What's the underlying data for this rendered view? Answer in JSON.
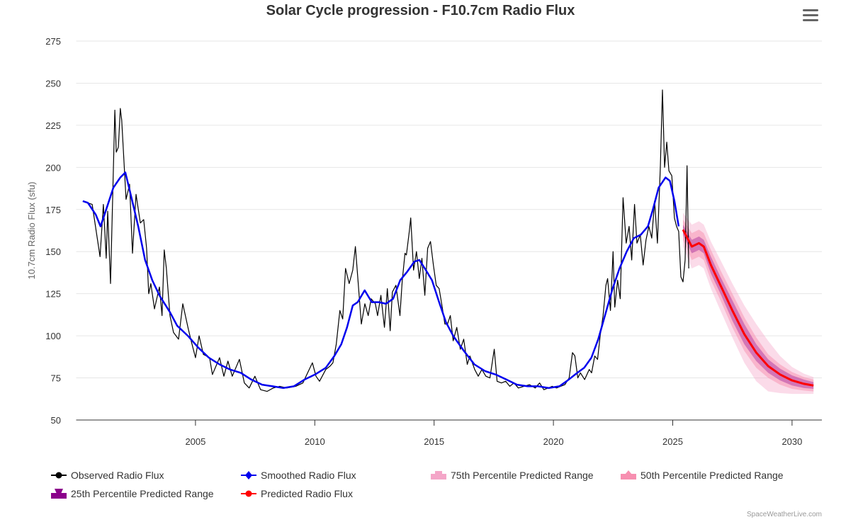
{
  "chart_data": {
    "type": "line",
    "title": "Solar Cycle progression - F10.7cm Radio Flux",
    "xlabel": "",
    "ylabel": "10.7cm Radio Flux (sfu)",
    "xlim": [
      2000,
      2031.25
    ],
    "ylim": [
      50,
      275
    ],
    "x_ticks": [
      2005,
      2010,
      2015,
      2020,
      2025,
      2030
    ],
    "y_ticks": [
      50,
      75,
      100,
      125,
      150,
      175,
      200,
      225,
      250,
      275
    ],
    "grid": true,
    "legend_placement": "bottom",
    "series": [
      {
        "name": "Observed Radio Flux",
        "color": "#000000",
        "points": [
          [
            2000.28,
            180
          ],
          [
            2000.67,
            178
          ],
          [
            2001.0,
            147
          ],
          [
            2001.14,
            178
          ],
          [
            2001.26,
            146
          ],
          [
            2001.32,
            174
          ],
          [
            2001.44,
            131
          ],
          [
            2001.62,
            234
          ],
          [
            2001.68,
            209
          ],
          [
            2001.77,
            212
          ],
          [
            2001.85,
            235
          ],
          [
            2001.91,
            228
          ],
          [
            2002.09,
            181
          ],
          [
            2002.24,
            190
          ],
          [
            2002.36,
            149
          ],
          [
            2002.51,
            184
          ],
          [
            2002.69,
            167
          ],
          [
            2002.83,
            169
          ],
          [
            2002.95,
            152
          ],
          [
            2003.04,
            125
          ],
          [
            2003.13,
            131
          ],
          [
            2003.28,
            116
          ],
          [
            2003.49,
            129
          ],
          [
            2003.6,
            112
          ],
          [
            2003.69,
            151
          ],
          [
            2003.78,
            140
          ],
          [
            2003.93,
            112
          ],
          [
            2004.08,
            102
          ],
          [
            2004.29,
            98
          ],
          [
            2004.47,
            119
          ],
          [
            2004.7,
            104
          ],
          [
            2004.82,
            97
          ],
          [
            2005.0,
            87
          ],
          [
            2005.15,
            100
          ],
          [
            2005.33,
            89
          ],
          [
            2005.59,
            87
          ],
          [
            2005.71,
            77
          ],
          [
            2006.01,
            87
          ],
          [
            2006.19,
            76
          ],
          [
            2006.36,
            85
          ],
          [
            2006.54,
            76
          ],
          [
            2006.84,
            86
          ],
          [
            2007.05,
            72
          ],
          [
            2007.25,
            69
          ],
          [
            2007.49,
            76
          ],
          [
            2007.73,
            68
          ],
          [
            2008.0,
            67
          ],
          [
            2008.26,
            69
          ],
          [
            2008.53,
            70
          ],
          [
            2008.83,
            69
          ],
          [
            2009.2,
            70
          ],
          [
            2009.5,
            72
          ],
          [
            2009.7,
            78
          ],
          [
            2009.9,
            84
          ],
          [
            2010.05,
            76
          ],
          [
            2010.2,
            73
          ],
          [
            2010.46,
            80
          ],
          [
            2010.64,
            82
          ],
          [
            2010.76,
            84
          ],
          [
            2010.9,
            95
          ],
          [
            2011.05,
            115
          ],
          [
            2011.17,
            110
          ],
          [
            2011.29,
            140
          ],
          [
            2011.44,
            131
          ],
          [
            2011.59,
            139
          ],
          [
            2011.7,
            153
          ],
          [
            2011.8,
            135
          ],
          [
            2011.95,
            107
          ],
          [
            2012.1,
            119
          ],
          [
            2012.24,
            112
          ],
          [
            2012.36,
            122
          ],
          [
            2012.54,
            119
          ],
          [
            2012.63,
            112
          ],
          [
            2012.77,
            124
          ],
          [
            2012.92,
            105
          ],
          [
            2013.04,
            128
          ],
          [
            2013.16,
            103
          ],
          [
            2013.25,
            126
          ],
          [
            2013.4,
            130
          ],
          [
            2013.57,
            112
          ],
          [
            2013.66,
            132
          ],
          [
            2013.78,
            149
          ],
          [
            2013.84,
            148
          ],
          [
            2013.96,
            162
          ],
          [
            2014.02,
            170
          ],
          [
            2014.14,
            139
          ],
          [
            2014.26,
            150
          ],
          [
            2014.38,
            134
          ],
          [
            2014.49,
            146
          ],
          [
            2014.61,
            124
          ],
          [
            2014.73,
            152
          ],
          [
            2014.85,
            156
          ],
          [
            2014.97,
            142
          ],
          [
            2015.09,
            130
          ],
          [
            2015.21,
            128
          ],
          [
            2015.33,
            118
          ],
          [
            2015.45,
            107
          ],
          [
            2015.56,
            107
          ],
          [
            2015.68,
            112
          ],
          [
            2015.8,
            97
          ],
          [
            2015.95,
            105
          ],
          [
            2016.1,
            92
          ],
          [
            2016.24,
            98
          ],
          [
            2016.39,
            83
          ],
          [
            2016.5,
            88
          ],
          [
            2016.7,
            80
          ],
          [
            2016.85,
            76
          ],
          [
            2017.0,
            80
          ],
          [
            2017.17,
            76
          ],
          [
            2017.34,
            75
          ],
          [
            2017.52,
            92
          ],
          [
            2017.64,
            73
          ],
          [
            2017.82,
            72
          ],
          [
            2018.0,
            73
          ],
          [
            2018.17,
            70
          ],
          [
            2018.35,
            72
          ],
          [
            2018.53,
            69
          ],
          [
            2018.77,
            70
          ],
          [
            2019.0,
            71
          ],
          [
            2019.24,
            69
          ],
          [
            2019.42,
            72
          ],
          [
            2019.6,
            68
          ],
          [
            2019.78,
            69
          ],
          [
            2019.95,
            70
          ],
          [
            2020.13,
            69
          ],
          [
            2020.3,
            70
          ],
          [
            2020.48,
            71
          ],
          [
            2020.66,
            75
          ],
          [
            2020.8,
            90
          ],
          [
            2020.9,
            88
          ],
          [
            2021.02,
            75
          ],
          [
            2021.13,
            78
          ],
          [
            2021.31,
            74
          ],
          [
            2021.5,
            80
          ],
          [
            2021.6,
            78
          ],
          [
            2021.73,
            88
          ],
          [
            2021.85,
            86
          ],
          [
            2021.96,
            100
          ],
          [
            2022.08,
            112
          ],
          [
            2022.2,
            130
          ],
          [
            2022.27,
            134
          ],
          [
            2022.39,
            115
          ],
          [
            2022.5,
            150
          ],
          [
            2022.57,
            117
          ],
          [
            2022.69,
            133
          ],
          [
            2022.8,
            122
          ],
          [
            2022.92,
            182
          ],
          [
            2023.05,
            155
          ],
          [
            2023.17,
            165
          ],
          [
            2023.28,
            145
          ],
          [
            2023.4,
            178
          ],
          [
            2023.5,
            155
          ],
          [
            2023.64,
            160
          ],
          [
            2023.76,
            142
          ],
          [
            2023.88,
            157
          ],
          [
            2024.0,
            165
          ],
          [
            2024.12,
            158
          ],
          [
            2024.24,
            180
          ],
          [
            2024.36,
            155
          ],
          [
            2024.48,
            200
          ],
          [
            2024.57,
            246
          ],
          [
            2024.66,
            200
          ],
          [
            2024.75,
            215
          ],
          [
            2024.84,
            198
          ],
          [
            2024.96,
            195
          ],
          [
            2025.07,
            170
          ],
          [
            2025.16,
            165
          ],
          [
            2025.25,
            162
          ],
          [
            2025.34,
            135
          ],
          [
            2025.43,
            132
          ],
          [
            2025.52,
            145
          ],
          [
            2025.6,
            201
          ],
          [
            2025.67,
            140
          ]
        ]
      },
      {
        "name": "Smoothed Radio Flux",
        "color": "#0000ee",
        "points": [
          [
            2000.28,
            180
          ],
          [
            2000.49,
            179
          ],
          [
            2000.82,
            172
          ],
          [
            2001.02,
            165
          ],
          [
            2001.26,
            175
          ],
          [
            2001.56,
            188
          ],
          [
            2001.85,
            194
          ],
          [
            2002.06,
            197
          ],
          [
            2002.3,
            183
          ],
          [
            2002.6,
            165
          ],
          [
            2002.89,
            145
          ],
          [
            2003.19,
            133
          ],
          [
            2003.49,
            124
          ],
          [
            2003.93,
            114
          ],
          [
            2004.23,
            106
          ],
          [
            2004.68,
            100
          ],
          [
            2005.12,
            93
          ],
          [
            2005.56,
            87
          ],
          [
            2006.01,
            83
          ],
          [
            2006.45,
            80
          ],
          [
            2006.9,
            78
          ],
          [
            2007.34,
            74
          ],
          [
            2007.79,
            71
          ],
          [
            2008.23,
            70
          ],
          [
            2008.68,
            69
          ],
          [
            2009.12,
            70
          ],
          [
            2009.57,
            74
          ],
          [
            2010.01,
            77
          ],
          [
            2010.46,
            81
          ],
          [
            2010.82,
            88
          ],
          [
            2011.11,
            95
          ],
          [
            2011.35,
            105
          ],
          [
            2011.59,
            118
          ],
          [
            2011.8,
            120
          ],
          [
            2012.09,
            127
          ],
          [
            2012.39,
            120
          ],
          [
            2012.69,
            120
          ],
          [
            2012.98,
            119
          ],
          [
            2013.28,
            122
          ],
          [
            2013.58,
            133
          ],
          [
            2013.87,
            138
          ],
          [
            2014.17,
            144
          ],
          [
            2014.38,
            145
          ],
          [
            2014.61,
            140
          ],
          [
            2014.91,
            133
          ],
          [
            2015.21,
            120
          ],
          [
            2015.5,
            108
          ],
          [
            2015.8,
            100
          ],
          [
            2016.25,
            91
          ],
          [
            2016.69,
            83
          ],
          [
            2017.14,
            79
          ],
          [
            2017.58,
            77
          ],
          [
            2018.03,
            74
          ],
          [
            2018.47,
            71
          ],
          [
            2018.92,
            70
          ],
          [
            2019.36,
            70
          ],
          [
            2019.81,
            69
          ],
          [
            2020.25,
            70
          ],
          [
            2020.55,
            73
          ],
          [
            2021.0,
            78
          ],
          [
            2021.29,
            81
          ],
          [
            2021.59,
            87
          ],
          [
            2021.88,
            98
          ],
          [
            2022.18,
            113
          ],
          [
            2022.48,
            128
          ],
          [
            2022.77,
            140
          ],
          [
            2023.07,
            150
          ],
          [
            2023.37,
            158
          ],
          [
            2023.66,
            160
          ],
          [
            2023.96,
            165
          ],
          [
            2024.17,
            175
          ],
          [
            2024.41,
            188
          ],
          [
            2024.7,
            194
          ],
          [
            2024.88,
            192
          ],
          [
            2025.07,
            180
          ],
          [
            2025.25,
            165
          ]
        ]
      },
      {
        "name": "Predicted Radio Flux",
        "color": "#ff0000",
        "points": [
          [
            2025.43,
            163
          ],
          [
            2025.8,
            153
          ],
          [
            2026.1,
            155
          ],
          [
            2026.3,
            153
          ],
          [
            2026.6,
            142
          ],
          [
            2027.0,
            130
          ],
          [
            2027.5,
            115
          ],
          [
            2028.0,
            101
          ],
          [
            2028.5,
            90
          ],
          [
            2029.0,
            82
          ],
          [
            2029.5,
            77
          ],
          [
            2030.0,
            73.5
          ],
          [
            2030.5,
            71.5
          ],
          [
            2030.9,
            70.5
          ]
        ]
      }
    ],
    "ranges": [
      {
        "name": "75th Percentile Predicted Range",
        "color": "#f4a6c8",
        "half_widths": [
          10,
          13,
          13,
          13,
          14,
          15,
          16,
          17,
          17,
          15,
          11,
          8,
          6,
          5
        ]
      },
      {
        "name": "50th Percentile Predicted Range",
        "color": "#f78fb0",
        "half_widths": [
          6,
          8,
          8,
          8,
          9,
          9,
          10,
          10,
          9,
          7,
          6,
          5,
          4,
          3.5
        ]
      },
      {
        "name": "25th Percentile Predicted Range",
        "color": "#8b008b",
        "half_widths": [
          3,
          4,
          4,
          4,
          5,
          5,
          6,
          6,
          5,
          4,
          3.5,
          3,
          2.5,
          2
        ]
      }
    ]
  },
  "legend": {
    "observed": "Observed Radio Flux",
    "smoothed": "Smoothed Radio Flux",
    "p75": "75th Percentile Predicted Range",
    "p50": "50th Percentile Predicted Range",
    "p25": "25th Percentile Predicted Range",
    "predicted": "Predicted Radio Flux"
  },
  "credit": "SpaceWeatherLive.com"
}
